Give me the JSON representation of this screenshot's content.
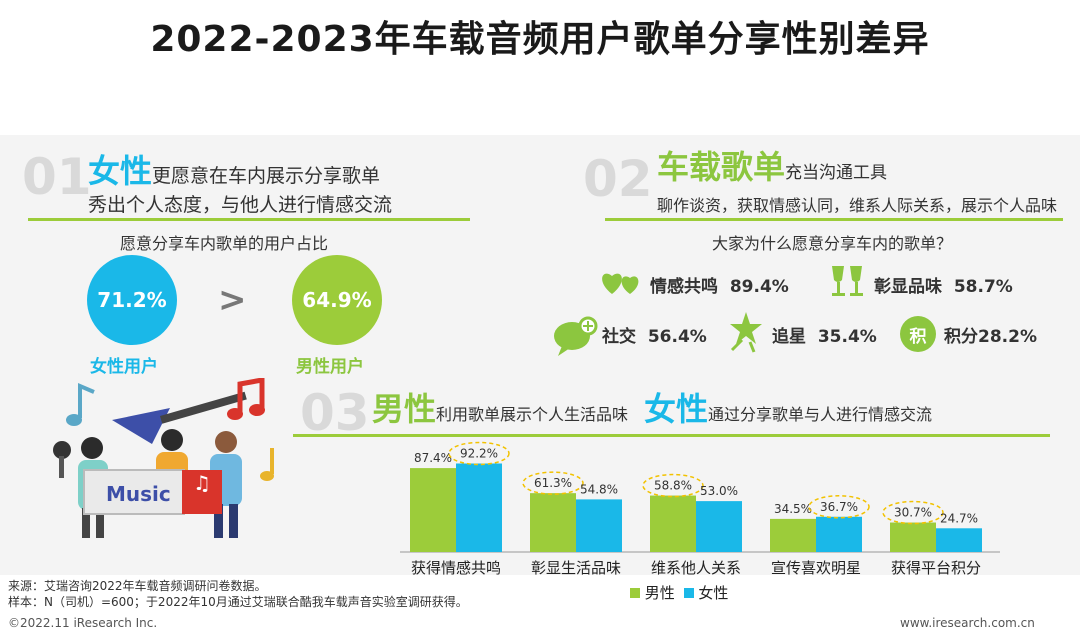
{
  "title": "2022-2023年车载音频用户歌单分享性别差异",
  "section1": {
    "num": "01",
    "hl": "女性",
    "headline_rest": "更愿意在车内展示分享歌单",
    "subline": "秀出个人态度，与他人进行情感交流",
    "question": "愿意分享车内歌单的用户占比",
    "female_pct": "71.2%",
    "male_pct": "64.9%",
    "compare": ">",
    "female_label": "女性用户",
    "male_label": "男性用户",
    "music_word": "Music"
  },
  "section2": {
    "num": "02",
    "hl": "车载歌单",
    "headline_rest": "充当沟通工具",
    "subline": "聊作谈资，获取情感认同，维系人际关系，展示个人品味",
    "question": "大家为什么愿意分享车内的歌单？",
    "reasons": [
      {
        "label": "情感共鸣",
        "value": "89.4%",
        "icon": "hearts-icon"
      },
      {
        "label": "彰显品味",
        "value": "58.7%",
        "icon": "cheers-icon"
      },
      {
        "label": "社交",
        "value": "56.4%",
        "icon": "chat-bubble-icon"
      },
      {
        "label": "追星",
        "value": "35.4%",
        "icon": "stars-icon"
      },
      {
        "label": "积分",
        "value": "28.2%",
        "icon": "points-icon",
        "icon_char": "积"
      }
    ]
  },
  "section3": {
    "num": "03",
    "hl1": "男性",
    "text1": "利用歌单展示个人生活品味",
    "hl2": "女性",
    "text2": "通过分享歌单与人进行情感交流"
  },
  "chart_data": {
    "type": "bar",
    "categories": [
      "获得情感共鸣",
      "彰显生活品味",
      "维系他人关系",
      "宣传喜欢明星",
      "获得平台积分"
    ],
    "series": [
      {
        "name": "男性",
        "values": [
          87.4,
          61.3,
          58.8,
          34.5,
          30.7
        ],
        "labels": [
          "87.4%",
          "61.3%",
          "58.8%",
          "34.5%",
          "30.7%"
        ],
        "color": "#9ccc3a"
      },
      {
        "name": "女性",
        "values": [
          92.2,
          54.8,
          53.0,
          36.7,
          24.7
        ],
        "labels": [
          "92.2%",
          "54.8%",
          "53.0%",
          "36.7%",
          "24.7%"
        ],
        "color": "#1ab8e8"
      }
    ],
    "highlight_color": "#f2c200",
    "ylim": [
      0,
      100
    ]
  },
  "colors": {
    "blue": "#1ab8e8",
    "green": "#9ccc3a",
    "gold": "#f2c200",
    "red": "#d9342b"
  },
  "footer": {
    "source": "来源：艾瑞咨询2022年车载音频调研问卷数据。",
    "sample": "样本：N（司机）=600；于2022年10月通过艾瑞联合酷我车载声音实验室调研获得。",
    "copyright": "©2022.11 iResearch Inc.",
    "url": "www.iresearch.com.cn"
  }
}
